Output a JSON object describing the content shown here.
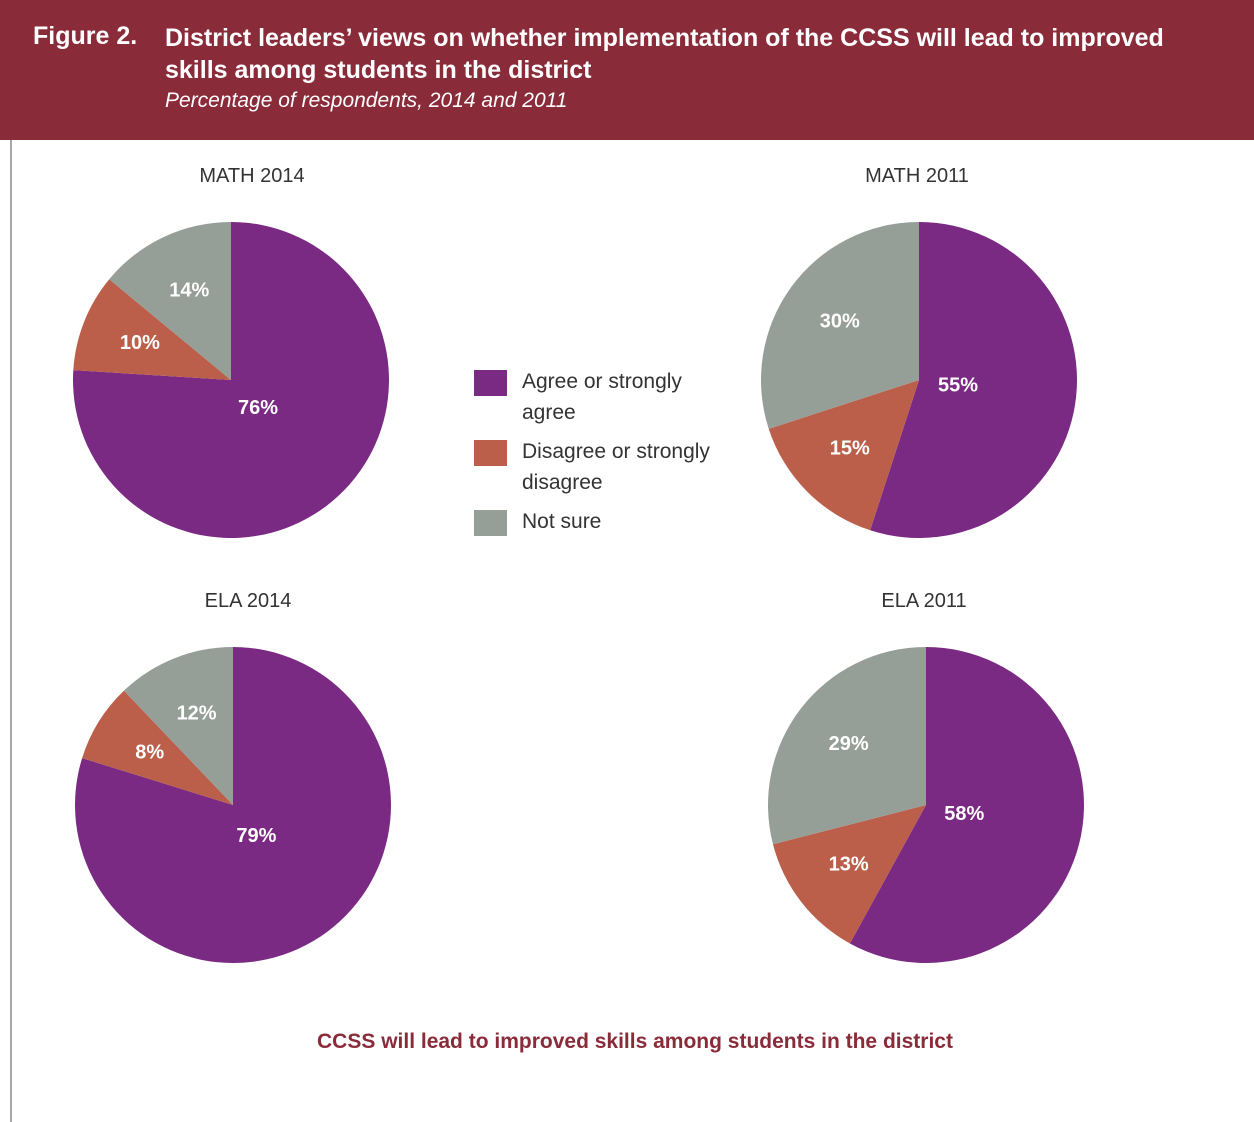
{
  "figure": {
    "label": "Figure 2.",
    "title": "District leaders’ views on whether implementation of the CCSS will lead to improved skills among students in the district",
    "subtitle": "Percentage of respondents, 2014 and 2011",
    "caption": "CCSS will lead to improved skills among students in the district"
  },
  "legend": [
    {
      "label": "Agree or strongly agree",
      "color": "#7a2a82"
    },
    {
      "label": "Disagree or strongly disagree",
      "color": "#bb5f4b"
    },
    {
      "label": "Not sure",
      "color": "#959f98"
    }
  ],
  "chart_data": [
    {
      "type": "pie",
      "title": "MATH 2014",
      "categories": [
        "Agree or strongly agree",
        "Disagree or strongly disagree",
        "Not sure"
      ],
      "values": [
        76,
        10,
        14
      ],
      "labels": [
        "76%",
        "10%",
        "14%"
      ]
    },
    {
      "type": "pie",
      "title": "MATH 2011",
      "categories": [
        "Agree or strongly agree",
        "Disagree or strongly disagree",
        "Not sure"
      ],
      "values": [
        55,
        15,
        30
      ],
      "labels": [
        "55%",
        "15%",
        "30%"
      ]
    },
    {
      "type": "pie",
      "title": "ELA 2014",
      "categories": [
        "Agree or strongly agree",
        "Disagree or strongly disagree",
        "Not sure"
      ],
      "values": [
        79,
        8,
        12
      ],
      "labels": [
        "79%",
        "8%",
        "12%"
      ]
    },
    {
      "type": "pie",
      "title": "ELA 2011",
      "categories": [
        "Agree or strongly agree",
        "Disagree or strongly disagree",
        "Not sure"
      ],
      "values": [
        58,
        13,
        29
      ],
      "labels": [
        "58%",
        "13%",
        "29%"
      ]
    }
  ]
}
